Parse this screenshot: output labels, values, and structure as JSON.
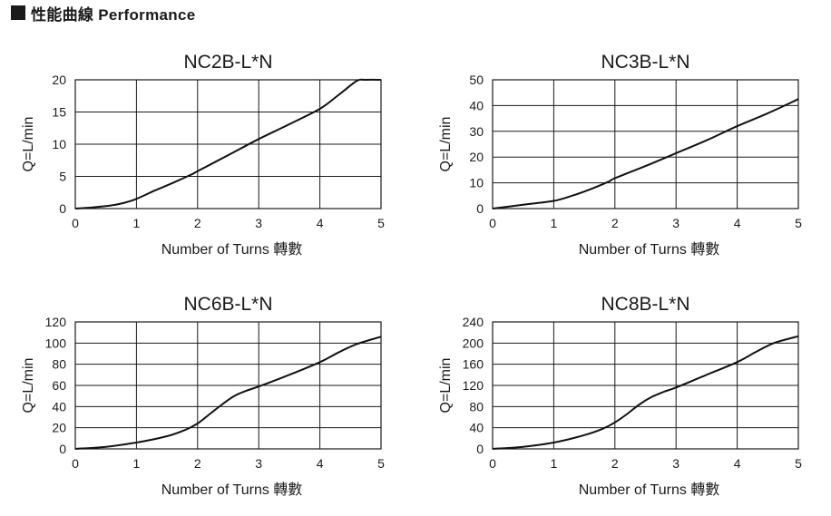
{
  "header": {
    "title": "性能曲線  Performance"
  },
  "chart_data": [
    {
      "type": "line",
      "title": "NC2B-L*N",
      "xlabel": "Number of Turns 轉數",
      "ylabel": "Q=L/min",
      "xlim": [
        0,
        5
      ],
      "ylim": [
        0,
        20
      ],
      "xticks": [
        0,
        1,
        2,
        3,
        4,
        5
      ],
      "yticks": [
        0,
        5,
        10,
        15,
        20
      ],
      "grid": true,
      "series": [
        {
          "x": [
            0,
            0.3,
            0.6,
            0.8,
            1.0,
            1.3,
            1.6,
            1.9,
            2.0,
            2.5,
            3.0,
            3.5,
            4.0,
            4.3,
            4.6,
            4.75,
            5.0
          ],
          "y": [
            0,
            0.2,
            0.5,
            0.9,
            1.5,
            2.8,
            4.0,
            5.3,
            5.8,
            8.3,
            10.8,
            13.1,
            15.5,
            17.6,
            19.8,
            20.0,
            20.0
          ]
        }
      ]
    },
    {
      "type": "line",
      "title": "NC3B-L*N",
      "xlabel": "Number of Turns 轉數",
      "ylabel": "Q=L/min",
      "xlim": [
        0,
        5
      ],
      "ylim": [
        0,
        50
      ],
      "xticks": [
        0,
        1,
        2,
        3,
        4,
        5
      ],
      "yticks": [
        0,
        10,
        20,
        30,
        40,
        50
      ],
      "grid": true,
      "series": [
        {
          "x": [
            0,
            0.5,
            1.0,
            1.3,
            1.6,
            1.9,
            2.0,
            2.5,
            3.0,
            3.5,
            4.0,
            4.5,
            5.0
          ],
          "y": [
            0,
            1.5,
            3.0,
            5.0,
            7.5,
            10.5,
            11.8,
            16.5,
            21.5,
            26.5,
            32.0,
            37.0,
            42.5
          ]
        }
      ]
    },
    {
      "type": "line",
      "title": "NC6B-L*N",
      "xlabel": "Number of Turns 轉數",
      "ylabel": "Q=L/min",
      "xlim": [
        0,
        5
      ],
      "ylim": [
        0,
        120
      ],
      "xticks": [
        0,
        1,
        2,
        3,
        4,
        5
      ],
      "yticks": [
        0,
        20,
        40,
        60,
        80,
        100,
        120
      ],
      "grid": true,
      "series": [
        {
          "x": [
            0,
            0.5,
            1.0,
            1.5,
            1.8,
            2.0,
            2.2,
            2.4,
            2.6,
            2.8,
            3.0,
            3.5,
            4.0,
            4.3,
            4.6,
            5.0
          ],
          "y": [
            0,
            2,
            6,
            12,
            18,
            24,
            33,
            42,
            50,
            55,
            59,
            70,
            82,
            91,
            99,
            106
          ]
        }
      ]
    },
    {
      "type": "line",
      "title": "NC8B-L*N",
      "xlabel": "Number of Turns 轉數",
      "ylabel": "Q=L/min",
      "xlim": [
        0,
        5
      ],
      "ylim": [
        0,
        240
      ],
      "xticks": [
        0,
        1,
        2,
        3,
        4,
        5
      ],
      "yticks": [
        0,
        40,
        80,
        120,
        160,
        200,
        240
      ],
      "grid": true,
      "series": [
        {
          "x": [
            0,
            0.5,
            1.0,
            1.5,
            1.8,
            2.0,
            2.2,
            2.4,
            2.6,
            2.8,
            3.0,
            3.5,
            4.0,
            4.3,
            4.6,
            5.0
          ],
          "y": [
            0,
            4,
            12,
            26,
            38,
            50,
            66,
            84,
            98,
            108,
            116,
            140,
            164,
            183,
            200,
            213
          ]
        }
      ]
    }
  ]
}
